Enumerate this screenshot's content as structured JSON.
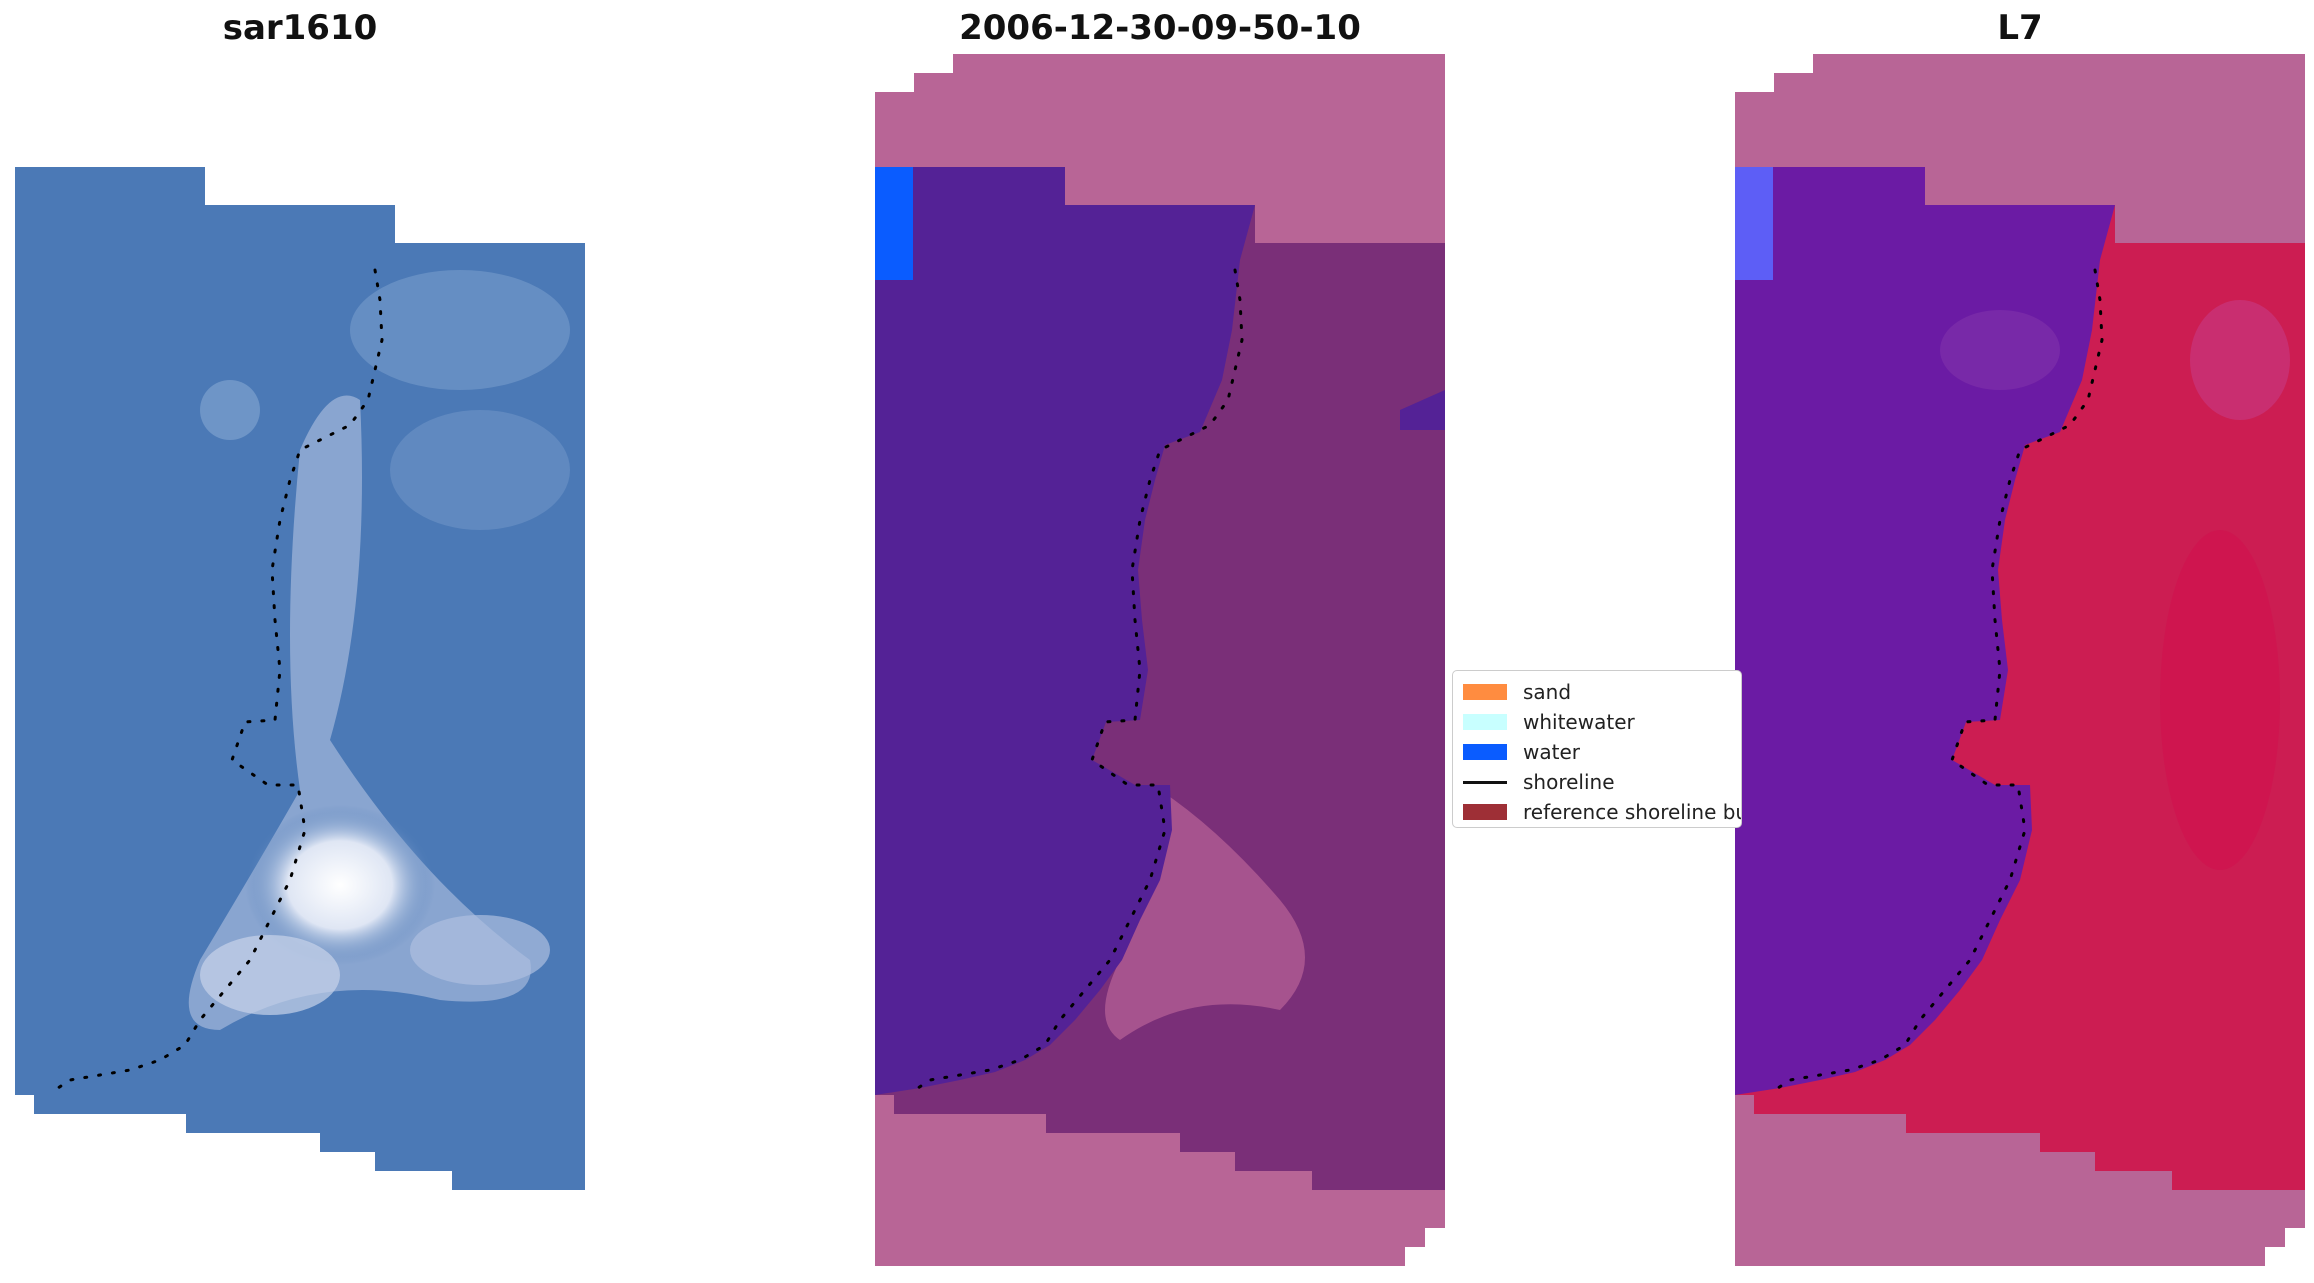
{
  "panels": [
    {
      "title": "sar1610"
    },
    {
      "title": "2006-12-30-09-50-10"
    },
    {
      "title": "L7"
    }
  ],
  "legend": {
    "items": [
      {
        "label": "sand",
        "color": "#ff8c40"
      },
      {
        "label": "whitewater",
        "color": "#c8ffff"
      },
      {
        "label": "water",
        "color": "#0a5cff"
      },
      {
        "label": "shoreline",
        "color": "#000000"
      },
      {
        "label": "reference shoreline buffer",
        "color": "#9e2f36"
      }
    ]
  },
  "colors": {
    "sar_water": "#4b79b6",
    "sar_sand": "#e8ecf6",
    "class_water": "#542296",
    "class_land": "#7a2f78",
    "mask": "#b86596",
    "nir_water": "#6b1ba4",
    "nir_land": "#cc1d52"
  }
}
